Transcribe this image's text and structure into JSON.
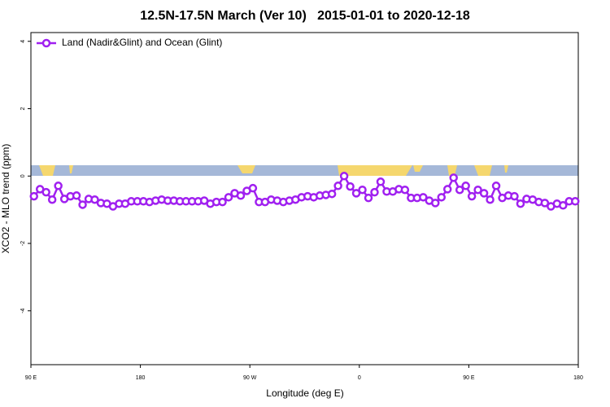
{
  "chart_data": {
    "type": "line",
    "title": "12.5N-17.5N March (Ver 10)   2015-01-01 to 2020-12-18",
    "xlabel": "Longitude (deg E)",
    "ylabel": "XCO2 - MLO trend (ppm)",
    "xlim": [
      90,
      540
    ],
    "ylim": [
      -5.6,
      4.26
    ],
    "xticks": [
      {
        "value": 90,
        "label": "90 E"
      },
      180,
      {
        "value": 270,
        "label": "90 W"
      },
      {
        "value": 360,
        "label": "0"
      },
      {
        "value": 450,
        "label": "90 E"
      },
      {
        "value": 540,
        "label": "180"
      }
    ],
    "yticks": [
      -4,
      -2,
      0,
      2,
      4
    ],
    "legend": "top-left",
    "x": [
      92.5,
      97.5,
      102.5,
      107.5,
      112.5,
      117.5,
      122.5,
      127.5,
      132.5,
      137.5,
      142.5,
      147.5,
      152.5,
      157.5,
      162.5,
      167.5,
      172.5,
      177.5,
      182.5,
      187.5,
      192.5,
      197.5,
      202.5,
      207.5,
      212.5,
      217.5,
      222.5,
      227.5,
      232.5,
      237.5,
      242.5,
      247.5,
      252.5,
      257.5,
      262.5,
      267.5,
      272.5,
      277.5,
      282.5,
      287.5,
      292.5,
      297.5,
      302.5,
      307.5,
      312.5,
      317.5,
      322.5,
      327.5,
      332.5,
      337.5,
      342.5,
      347.5,
      352.5,
      357.5,
      362.5,
      367.5,
      372.5,
      377.5,
      382.5,
      387.5,
      392.5,
      397.5,
      402.5,
      407.5,
      412.5,
      417.5,
      422.5,
      427.5,
      432.5,
      437.5,
      442.5,
      447.5,
      452.5,
      457.5,
      462.5,
      467.5,
      472.5,
      477.5,
      482.5,
      487.5,
      492.5,
      497.5,
      502.5,
      507.5,
      512.5,
      517.5,
      522.5,
      527.5,
      532.5,
      537.5
    ],
    "series": [
      {
        "name": "Land (Nadir&Glint) and Ocean (Glint)",
        "color": "#a020f0",
        "values": [
          -0.6,
          -0.39,
          -0.48,
          -0.7,
          -0.29,
          -0.68,
          -0.6,
          -0.58,
          -0.85,
          -0.68,
          -0.7,
          -0.8,
          -0.82,
          -0.9,
          -0.82,
          -0.82,
          -0.75,
          -0.75,
          -0.75,
          -0.77,
          -0.73,
          -0.7,
          -0.73,
          -0.73,
          -0.75,
          -0.75,
          -0.75,
          -0.75,
          -0.73,
          -0.82,
          -0.77,
          -0.77,
          -0.63,
          -0.51,
          -0.58,
          -0.44,
          -0.36,
          -0.77,
          -0.77,
          -0.7,
          -0.73,
          -0.77,
          -0.73,
          -0.7,
          -0.63,
          -0.6,
          -0.63,
          -0.58,
          -0.56,
          -0.53,
          -0.29,
          0,
          -0.31,
          -0.51,
          -0.41,
          -0.65,
          -0.48,
          -0.17,
          -0.46,
          -0.46,
          -0.39,
          -0.41,
          -0.65,
          -0.65,
          -0.63,
          -0.73,
          -0.8,
          -0.63,
          -0.39,
          -0.05,
          -0.41,
          -0.29,
          -0.6,
          -0.41,
          -0.51,
          -0.7,
          -0.29,
          -0.65,
          -0.58,
          -0.6,
          -0.82,
          -0.68,
          -0.7,
          -0.77,
          -0.8,
          -0.9,
          -0.82,
          -0.87,
          -0.75,
          -0.75
        ]
      }
    ]
  }
}
